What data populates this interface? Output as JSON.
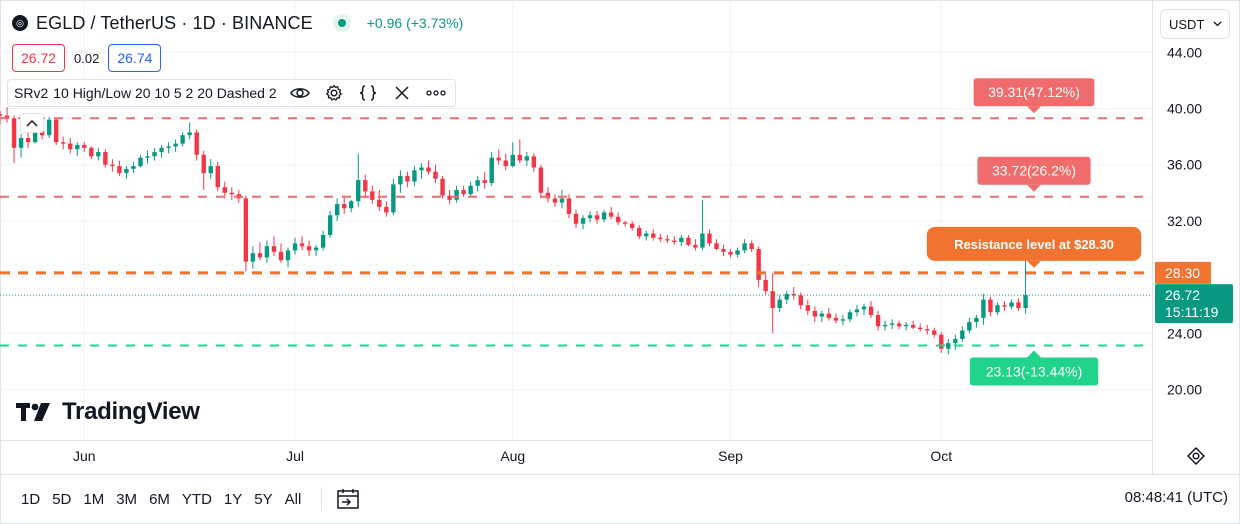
{
  "header": {
    "symbol_logo": "◎",
    "title": "EGLD / TetherUS · 1D · BINANCE",
    "change": "+0.96 (+3.73%)"
  },
  "quotes": {
    "sell": "26.72",
    "spread": "0.02",
    "buy": "26.74"
  },
  "indicator": {
    "name": "SRv2",
    "params": "10 High/Low 20 10 5 2 20 Dashed 2",
    "icons": [
      "eye-icon",
      "gear-icon",
      "braces-icon",
      "close-icon",
      "more-icon"
    ]
  },
  "currency_selector": {
    "value": "USDT"
  },
  "branding": {
    "logo_text": "TradingView"
  },
  "time_ranges": [
    "1D",
    "5D",
    "1M",
    "3M",
    "6M",
    "YTD",
    "1Y",
    "5Y",
    "All"
  ],
  "clock": "08:48:41 (UTC)",
  "colors": {
    "up": "#089981",
    "down": "#f23645",
    "resistance": "#f06b6b",
    "key_level": "#f0742f",
    "support": "#22d38a",
    "accent_blue": "#2962ff"
  },
  "chart_data": {
    "type": "candlestick",
    "y_ticks": [
      "44.00",
      "40.00",
      "36.00",
      "32.00",
      "28.00",
      "24.00",
      "20.00"
    ],
    "y_tick_values": [
      44,
      40,
      36,
      32,
      28,
      24,
      20
    ],
    "ylim": [
      20,
      44
    ],
    "x_ticks": [
      "Jun",
      "Jul",
      "Aug",
      "Sep",
      "Oct"
    ],
    "x_tick_dates": [
      "2024-06-01",
      "2024-07-01",
      "2024-08-01",
      "2024-09-01",
      "2024-10-01"
    ],
    "xlim": [
      "2024-05-20",
      "2024-10-31"
    ],
    "levels": [
      {
        "kind": "resistance",
        "value": 39.31,
        "label": "39.31(47.12%)"
      },
      {
        "kind": "resistance",
        "value": 33.72,
        "label": "33.72(26.2%)"
      },
      {
        "kind": "key",
        "value": 28.3,
        "label": "Resistance level at $28.30",
        "axis_label": "28.30"
      },
      {
        "kind": "support",
        "value": 23.13,
        "label": "23.13(-13.44%)"
      }
    ],
    "last_price": {
      "value": 26.72,
      "label": "26.72",
      "countdown": "15:11:19"
    },
    "candles": [
      [
        "2024-05-20",
        39.6,
        39.8,
        38.9,
        39.5
      ],
      [
        "2024-05-21",
        39.5,
        40.1,
        39.0,
        39.3
      ],
      [
        "2024-05-22",
        39.3,
        39.5,
        36.1,
        37.2
      ],
      [
        "2024-05-23",
        37.2,
        38.2,
        36.5,
        37.9
      ],
      [
        "2024-05-24",
        37.9,
        38.6,
        37.2,
        37.6
      ],
      [
        "2024-05-25",
        37.6,
        38.8,
        37.5,
        38.4
      ],
      [
        "2024-05-26",
        38.4,
        38.9,
        37.8,
        38.1
      ],
      [
        "2024-05-27",
        38.1,
        39.4,
        37.9,
        39.2
      ],
      [
        "2024-05-28",
        39.2,
        39.3,
        37.4,
        37.6
      ],
      [
        "2024-05-29",
        37.6,
        38.0,
        37.1,
        37.5
      ],
      [
        "2024-05-30",
        37.5,
        37.9,
        36.8,
        37.1
      ],
      [
        "2024-05-31",
        37.1,
        37.6,
        36.6,
        37.4
      ],
      [
        "2024-06-01",
        37.4,
        37.6,
        36.9,
        37.2
      ],
      [
        "2024-06-02",
        37.2,
        37.3,
        36.4,
        36.6
      ],
      [
        "2024-06-03",
        36.6,
        37.2,
        36.3,
        36.9
      ],
      [
        "2024-06-04",
        36.9,
        37.1,
        35.8,
        36.0
      ],
      [
        "2024-06-05",
        36.0,
        36.4,
        35.5,
        35.9
      ],
      [
        "2024-06-06",
        35.9,
        36.3,
        35.2,
        35.4
      ],
      [
        "2024-06-07",
        35.4,
        35.9,
        35.0,
        35.7
      ],
      [
        "2024-06-08",
        35.7,
        36.2,
        35.4,
        35.9
      ],
      [
        "2024-06-09",
        35.9,
        36.7,
        35.8,
        36.5
      ],
      [
        "2024-06-10",
        36.5,
        37.0,
        36.1,
        36.6
      ],
      [
        "2024-06-11",
        36.6,
        37.2,
        36.3,
        36.9
      ],
      [
        "2024-06-12",
        36.9,
        37.4,
        36.5,
        37.2
      ],
      [
        "2024-06-13",
        37.2,
        37.6,
        36.8,
        37.3
      ],
      [
        "2024-06-14",
        37.3,
        37.8,
        36.9,
        37.5
      ],
      [
        "2024-06-15",
        37.5,
        38.3,
        37.3,
        38.1
      ],
      [
        "2024-06-16",
        38.1,
        39.0,
        37.8,
        38.3
      ],
      [
        "2024-06-17",
        38.3,
        38.5,
        36.3,
        36.7
      ],
      [
        "2024-06-18",
        36.7,
        37.0,
        34.2,
        35.4
      ],
      [
        "2024-06-19",
        35.4,
        36.4,
        35.0,
        35.9
      ],
      [
        "2024-06-20",
        35.9,
        36.2,
        34.1,
        34.4
      ],
      [
        "2024-06-21",
        34.4,
        34.8,
        33.6,
        34.0
      ],
      [
        "2024-06-22",
        34.0,
        34.4,
        33.5,
        33.9
      ],
      [
        "2024-06-23",
        33.9,
        34.2,
        33.3,
        33.6
      ],
      [
        "2024-06-24",
        33.6,
        33.8,
        28.4,
        29.1
      ],
      [
        "2024-06-25",
        29.1,
        30.2,
        28.6,
        29.7
      ],
      [
        "2024-06-26",
        29.7,
        30.5,
        29.2,
        29.4
      ],
      [
        "2024-06-27",
        29.4,
        30.6,
        29.0,
        30.2
      ],
      [
        "2024-06-28",
        30.2,
        30.9,
        29.5,
        29.8
      ],
      [
        "2024-06-29",
        29.8,
        30.4,
        29.0,
        29.2
      ],
      [
        "2024-06-30",
        29.2,
        30.1,
        28.7,
        29.9
      ],
      [
        "2024-07-01",
        29.9,
        30.8,
        29.6,
        30.4
      ],
      [
        "2024-07-02",
        30.4,
        30.9,
        29.9,
        30.2
      ],
      [
        "2024-07-03",
        30.2,
        30.6,
        29.5,
        29.9
      ],
      [
        "2024-07-04",
        29.9,
        30.3,
        29.5,
        30.1
      ],
      [
        "2024-07-05",
        30.1,
        31.3,
        29.9,
        31.0
      ],
      [
        "2024-07-06",
        31.0,
        32.7,
        30.8,
        32.4
      ],
      [
        "2024-07-07",
        32.4,
        33.6,
        32.0,
        33.2
      ],
      [
        "2024-07-08",
        33.2,
        33.8,
        32.5,
        32.9
      ],
      [
        "2024-07-09",
        32.9,
        33.5,
        32.6,
        33.4
      ],
      [
        "2024-07-10",
        33.4,
        36.8,
        33.0,
        34.9
      ],
      [
        "2024-07-11",
        34.9,
        35.3,
        33.6,
        34.1
      ],
      [
        "2024-07-12",
        34.1,
        34.5,
        33.2,
        33.5
      ],
      [
        "2024-07-13",
        33.5,
        34.2,
        32.7,
        33.0
      ],
      [
        "2024-07-14",
        33.0,
        33.4,
        32.3,
        32.6
      ],
      [
        "2024-07-15",
        32.6,
        35.0,
        32.4,
        34.6
      ],
      [
        "2024-07-16",
        34.6,
        35.6,
        34.0,
        35.2
      ],
      [
        "2024-07-17",
        35.2,
        35.5,
        34.4,
        34.8
      ],
      [
        "2024-07-18",
        34.8,
        35.9,
        34.5,
        35.6
      ],
      [
        "2024-07-19",
        35.6,
        36.1,
        35.0,
        35.8
      ],
      [
        "2024-07-20",
        35.8,
        36.3,
        35.3,
        35.5
      ],
      [
        "2024-07-21",
        35.5,
        36.0,
        34.7,
        35.0
      ],
      [
        "2024-07-22",
        35.0,
        35.2,
        33.6,
        33.8
      ],
      [
        "2024-07-23",
        33.8,
        34.2,
        33.2,
        33.5
      ],
      [
        "2024-07-24",
        33.5,
        34.5,
        33.3,
        34.2
      ],
      [
        "2024-07-25",
        34.2,
        34.5,
        33.7,
        33.9
      ],
      [
        "2024-07-26",
        33.9,
        34.8,
        33.7,
        34.5
      ],
      [
        "2024-07-27",
        34.5,
        35.2,
        34.1,
        34.9
      ],
      [
        "2024-07-28",
        34.9,
        35.5,
        34.3,
        34.7
      ],
      [
        "2024-07-29",
        34.7,
        36.9,
        34.5,
        36.5
      ],
      [
        "2024-07-30",
        36.5,
        37.1,
        36.0,
        36.3
      ],
      [
        "2024-07-31",
        36.3,
        36.8,
        35.6,
        35.9
      ],
      [
        "2024-08-01",
        35.9,
        37.6,
        35.8,
        36.7
      ],
      [
        "2024-08-02",
        36.7,
        37.8,
        36.1,
        36.3
      ],
      [
        "2024-08-03",
        36.3,
        36.9,
        35.9,
        36.6
      ],
      [
        "2024-08-04",
        36.6,
        36.8,
        35.5,
        35.8
      ],
      [
        "2024-08-05",
        35.8,
        36.0,
        33.6,
        34.0
      ],
      [
        "2024-08-06",
        34.0,
        34.4,
        33.3,
        33.6
      ],
      [
        "2024-08-07",
        33.6,
        33.9,
        33.0,
        33.3
      ],
      [
        "2024-08-08",
        33.3,
        34.2,
        32.9,
        33.6
      ],
      [
        "2024-08-09",
        33.6,
        33.9,
        32.2,
        32.5
      ],
      [
        "2024-08-10",
        32.5,
        32.8,
        31.5,
        31.8
      ],
      [
        "2024-08-11",
        31.8,
        32.4,
        31.4,
        32.2
      ],
      [
        "2024-08-12",
        32.2,
        32.7,
        31.9,
        32.4
      ],
      [
        "2024-08-13",
        32.4,
        32.7,
        31.8,
        32.1
      ],
      [
        "2024-08-14",
        32.1,
        32.8,
        31.9,
        32.6
      ],
      [
        "2024-08-15",
        32.6,
        33.0,
        32.1,
        32.3
      ],
      [
        "2024-08-16",
        32.3,
        32.6,
        31.7,
        31.9
      ],
      [
        "2024-08-17",
        31.9,
        32.0,
        31.6,
        31.8
      ],
      [
        "2024-08-18",
        31.8,
        32.0,
        31.3,
        31.5
      ],
      [
        "2024-08-19",
        31.5,
        31.7,
        30.7,
        30.9
      ],
      [
        "2024-08-20",
        30.9,
        31.3,
        30.6,
        31.1
      ],
      [
        "2024-08-21",
        31.1,
        31.4,
        30.6,
        30.8
      ],
      [
        "2024-08-22",
        30.8,
        31.1,
        30.5,
        30.7
      ],
      [
        "2024-08-23",
        30.7,
        31.0,
        30.4,
        30.6
      ],
      [
        "2024-08-24",
        30.6,
        30.9,
        30.3,
        30.5
      ],
      [
        "2024-08-25",
        30.5,
        31.0,
        30.2,
        30.8
      ],
      [
        "2024-08-26",
        30.8,
        31.0,
        30.2,
        30.3
      ],
      [
        "2024-08-27",
        30.3,
        30.7,
        29.9,
        30.1
      ],
      [
        "2024-08-28",
        30.1,
        33.5,
        29.9,
        31.1
      ],
      [
        "2024-08-29",
        31.1,
        31.4,
        30.2,
        30.4
      ],
      [
        "2024-08-30",
        30.4,
        30.7,
        29.9,
        30.0
      ],
      [
        "2024-08-31",
        30.0,
        30.3,
        29.5,
        29.8
      ],
      [
        "2024-09-01",
        29.8,
        30.0,
        29.4,
        29.6
      ],
      [
        "2024-09-02",
        29.6,
        30.1,
        29.4,
        29.9
      ],
      [
        "2024-09-03",
        29.9,
        30.7,
        29.7,
        30.4
      ],
      [
        "2024-09-04",
        30.4,
        30.6,
        29.8,
        30.0
      ],
      [
        "2024-09-05",
        30.0,
        30.2,
        27.3,
        27.8
      ],
      [
        "2024-09-06",
        27.8,
        28.2,
        26.7,
        27.0
      ],
      [
        "2024-09-07",
        27.0,
        28.3,
        24.0,
        25.8
      ],
      [
        "2024-09-08",
        25.8,
        26.7,
        25.5,
        26.4
      ],
      [
        "2024-09-09",
        26.4,
        27.0,
        26.1,
        26.8
      ],
      [
        "2024-09-10",
        26.8,
        27.3,
        26.4,
        26.7
      ],
      [
        "2024-09-11",
        26.7,
        26.9,
        25.7,
        26.0
      ],
      [
        "2024-09-12",
        26.0,
        26.4,
        25.3,
        25.6
      ],
      [
        "2024-09-13",
        25.6,
        25.9,
        24.8,
        25.2
      ],
      [
        "2024-09-14",
        25.2,
        25.6,
        24.8,
        25.4
      ],
      [
        "2024-09-15",
        25.4,
        25.8,
        24.9,
        25.1
      ],
      [
        "2024-09-16",
        25.1,
        25.4,
        24.7,
        24.9
      ],
      [
        "2024-09-17",
        24.9,
        25.3,
        24.6,
        25.0
      ],
      [
        "2024-09-18",
        25.0,
        25.7,
        24.8,
        25.5
      ],
      [
        "2024-09-19",
        25.5,
        26.0,
        25.2,
        25.7
      ],
      [
        "2024-09-20",
        25.7,
        26.1,
        25.3,
        25.9
      ],
      [
        "2024-09-21",
        25.9,
        26.3,
        25.1,
        25.3
      ],
      [
        "2024-09-22",
        25.3,
        25.6,
        24.2,
        24.5
      ],
      [
        "2024-09-23",
        24.5,
        24.9,
        24.2,
        24.6
      ],
      [
        "2024-09-24",
        24.6,
        25.0,
        24.3,
        24.7
      ],
      [
        "2024-09-25",
        24.7,
        24.9,
        24.3,
        24.5
      ],
      [
        "2024-09-26",
        24.5,
        24.8,
        24.2,
        24.6
      ],
      [
        "2024-09-27",
        24.6,
        24.9,
        24.3,
        24.4
      ],
      [
        "2024-09-28",
        24.4,
        24.7,
        24.1,
        24.3
      ],
      [
        "2024-09-29",
        24.3,
        24.6,
        23.9,
        24.2
      ],
      [
        "2024-09-30",
        24.2,
        24.4,
        23.7,
        23.9
      ],
      [
        "2024-10-01",
        23.9,
        24.1,
        22.6,
        22.9
      ],
      [
        "2024-10-02",
        22.9,
        23.6,
        22.5,
        23.3
      ],
      [
        "2024-10-03",
        23.3,
        23.9,
        22.8,
        23.6
      ],
      [
        "2024-10-04",
        23.6,
        24.5,
        23.4,
        24.2
      ],
      [
        "2024-10-05",
        24.2,
        25.1,
        24.0,
        24.8
      ],
      [
        "2024-10-06",
        24.8,
        25.3,
        24.4,
        25.1
      ],
      [
        "2024-10-07",
        25.1,
        26.8,
        24.6,
        26.4
      ],
      [
        "2024-10-08",
        26.4,
        26.6,
        25.2,
        25.5
      ],
      [
        "2024-10-09",
        25.5,
        26.2,
        25.3,
        26.0
      ],
      [
        "2024-10-10",
        26.0,
        26.3,
        25.6,
        25.9
      ],
      [
        "2024-10-11",
        25.9,
        26.4,
        25.7,
        26.2
      ],
      [
        "2024-10-12",
        26.2,
        26.5,
        25.6,
        25.8
      ],
      [
        "2024-10-13",
        25.8,
        29.3,
        25.4,
        26.72
      ]
    ]
  }
}
